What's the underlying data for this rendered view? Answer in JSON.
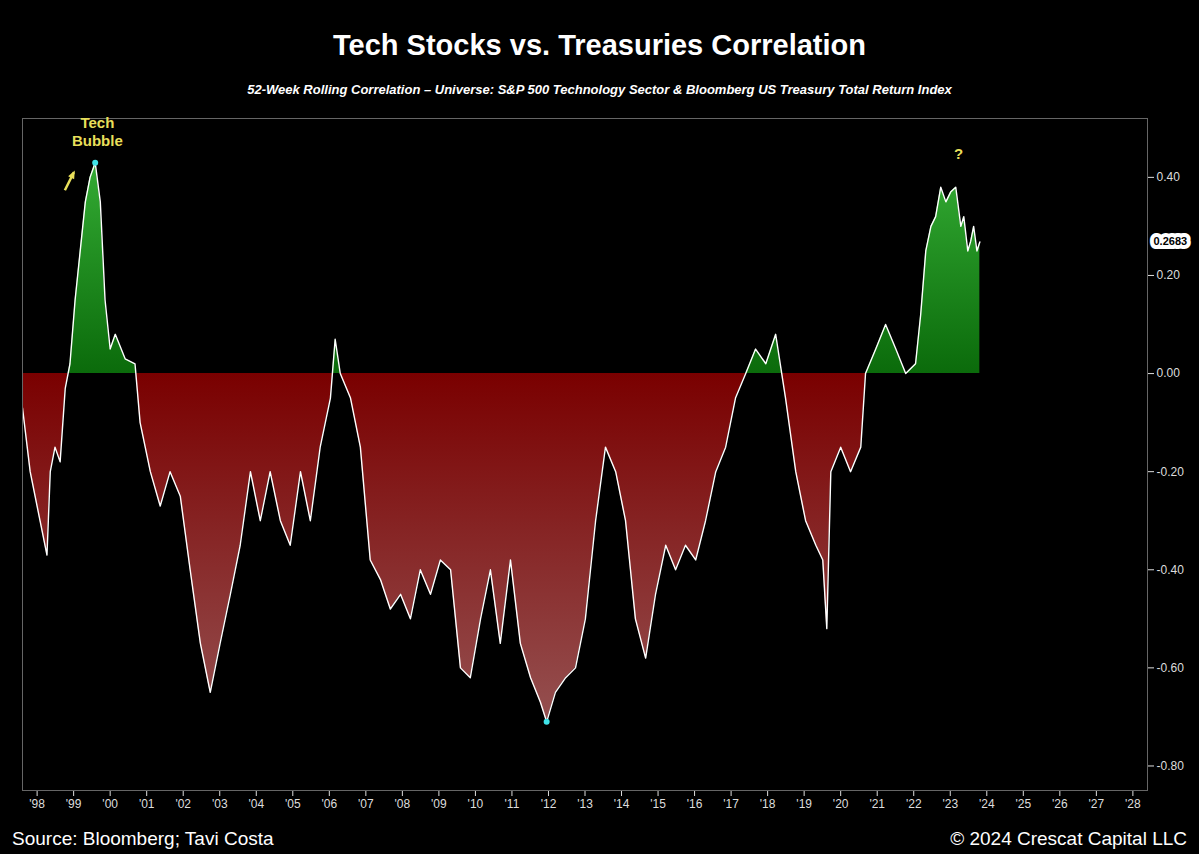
{
  "chart_data": {
    "type": "area",
    "title": "Tech Stocks vs. Treasuries Correlation",
    "subtitle": "52-Week Rolling Correlation – Universe: S&P 500 Technology Sector & Bloomberg US Treasury Total Return Index",
    "source": "Source: Bloomberg; Tavi Costa",
    "copyright": "© 2024 Crescat Capital LLC",
    "color": "#ffffff",
    "x": [
      1997.6,
      1997.81,
      1998.08,
      1998.27,
      1998.36,
      1998.49,
      1998.63,
      1998.77,
      1998.9,
      1999.04,
      1999.18,
      1999.32,
      1999.45,
      1999.59,
      1999.73,
      1999.86,
      2000.0,
      2000.14,
      2000.41,
      2000.68,
      2000.82,
      2001.1,
      2001.37,
      2001.64,
      2001.92,
      2002.19,
      2002.47,
      2002.74,
      2003.01,
      2003.29,
      2003.56,
      2003.84,
      2004.11,
      2004.38,
      2004.66,
      2004.93,
      2005.21,
      2005.48,
      2005.75,
      2006.03,
      2006.16,
      2006.3,
      2006.58,
      2006.85,
      2007.12,
      2007.4,
      2007.67,
      2007.95,
      2008.22,
      2008.49,
      2008.77,
      2009.04,
      2009.32,
      2009.59,
      2009.86,
      2010.14,
      2010.41,
      2010.68,
      2010.96,
      2011.23,
      2011.51,
      2011.78,
      2011.95,
      2012.19,
      2012.47,
      2012.74,
      2013.01,
      2013.29,
      2013.56,
      2013.84,
      2014.11,
      2014.38,
      2014.66,
      2014.93,
      2015.21,
      2015.48,
      2015.75,
      2016.03,
      2016.3,
      2016.58,
      2016.85,
      2017.12,
      2017.4,
      2017.67,
      2017.95,
      2018.22,
      2018.49,
      2018.77,
      2019.04,
      2019.32,
      2019.51,
      2019.62,
      2019.73,
      2020.0,
      2020.27,
      2020.55,
      2020.68,
      2020.96,
      2021.23,
      2021.51,
      2021.78,
      2022.05,
      2022.19,
      2022.33,
      2022.47,
      2022.6,
      2022.74,
      2022.88,
      2023.01,
      2023.15,
      2023.29,
      2023.37,
      2023.48,
      2023.56,
      2023.64,
      2023.73,
      2023.81
    ],
    "values": [
      -0.07,
      -0.2,
      -0.3,
      -0.37,
      -0.2,
      -0.15,
      -0.18,
      -0.03,
      0.02,
      0.15,
      0.25,
      0.35,
      0.4,
      0.43,
      0.35,
      0.15,
      0.05,
      0.08,
      0.03,
      0.02,
      -0.1,
      -0.2,
      -0.27,
      -0.2,
      -0.25,
      -0.4,
      -0.55,
      -0.65,
      -0.55,
      -0.45,
      -0.35,
      -0.2,
      -0.3,
      -0.2,
      -0.3,
      -0.35,
      -0.2,
      -0.3,
      -0.15,
      -0.05,
      0.07,
      0.0,
      -0.05,
      -0.15,
      -0.38,
      -0.42,
      -0.48,
      -0.45,
      -0.5,
      -0.4,
      -0.45,
      -0.38,
      -0.4,
      -0.6,
      -0.62,
      -0.5,
      -0.4,
      -0.55,
      -0.38,
      -0.55,
      -0.62,
      -0.67,
      -0.71,
      -0.65,
      -0.62,
      -0.6,
      -0.5,
      -0.3,
      -0.15,
      -0.2,
      -0.3,
      -0.5,
      -0.58,
      -0.45,
      -0.35,
      -0.4,
      -0.35,
      -0.38,
      -0.3,
      -0.2,
      -0.15,
      -0.05,
      0.0,
      0.05,
      0.02,
      0.08,
      -0.05,
      -0.2,
      -0.3,
      -0.35,
      -0.38,
      -0.52,
      -0.2,
      -0.15,
      -0.2,
      -0.15,
      0.0,
      0.05,
      0.1,
      0.05,
      0.0,
      0.02,
      0.12,
      0.25,
      0.3,
      0.32,
      0.38,
      0.35,
      0.37,
      0.38,
      0.3,
      0.32,
      0.25,
      0.27,
      0.3,
      0.25,
      0.2683
    ],
    "xlim": [
      1997.6,
      2028.4
    ],
    "xticks": [
      {
        "value": 1998,
        "label": "'98"
      },
      {
        "value": 1999,
        "label": "'99"
      },
      {
        "value": 2000,
        "label": "'00"
      },
      {
        "value": 2001,
        "label": "'01"
      },
      {
        "value": 2002,
        "label": "'02"
      },
      {
        "value": 2003,
        "label": "'03"
      },
      {
        "value": 2004,
        "label": "'04"
      },
      {
        "value": 2005,
        "label": "'05"
      },
      {
        "value": 2006,
        "label": "'06"
      },
      {
        "value": 2007,
        "label": "'07"
      },
      {
        "value": 2008,
        "label": "'08"
      },
      {
        "value": 2009,
        "label": "'09"
      },
      {
        "value": 2010,
        "label": "'10"
      },
      {
        "value": 2011,
        "label": "'11"
      },
      {
        "value": 2012,
        "label": "'12"
      },
      {
        "value": 2013,
        "label": "'13"
      },
      {
        "value": 2014,
        "label": "'14"
      },
      {
        "value": 2015,
        "label": "'15"
      },
      {
        "value": 2016,
        "label": "'16"
      },
      {
        "value": 2017,
        "label": "'17"
      },
      {
        "value": 2018,
        "label": "'18"
      },
      {
        "value": 2019,
        "label": "'19"
      },
      {
        "value": 2020,
        "label": "'20"
      },
      {
        "value": 2021,
        "label": "'21"
      },
      {
        "value": 2022,
        "label": "'22"
      },
      {
        "value": 2023,
        "label": "'23"
      },
      {
        "value": 2024,
        "label": "'24"
      },
      {
        "value": 2025,
        "label": "'25"
      },
      {
        "value": 2026,
        "label": "'26"
      },
      {
        "value": 2027,
        "label": "'27"
      },
      {
        "value": 2028,
        "label": "'28"
      }
    ],
    "ylim": [
      -0.85,
      0.52
    ],
    "yticks": [
      {
        "value": -0.8,
        "label": "-0.80"
      },
      {
        "value": -0.6,
        "label": "-0.60"
      },
      {
        "value": -0.4,
        "label": "-0.40"
      },
      {
        "value": -0.2,
        "label": "-0.20"
      },
      {
        "value": 0,
        "label": "0.00"
      },
      {
        "value": 0.2,
        "label": "0.20"
      },
      {
        "value": 0.4,
        "label": "0.40"
      }
    ],
    "highlights": [
      {
        "x": 1999.59,
        "y": 0.43
      },
      {
        "x": 2011.95,
        "y": -0.71
      }
    ],
    "annotations": [
      {
        "text": "Tech Bubble",
        "x": 1999.65,
        "y": 0.495
      },
      {
        "text": "?",
        "x": 2023.23,
        "y": 0.449
      },
      {
        "text": "0.2683",
        "y": 0.2683
      }
    ]
  }
}
